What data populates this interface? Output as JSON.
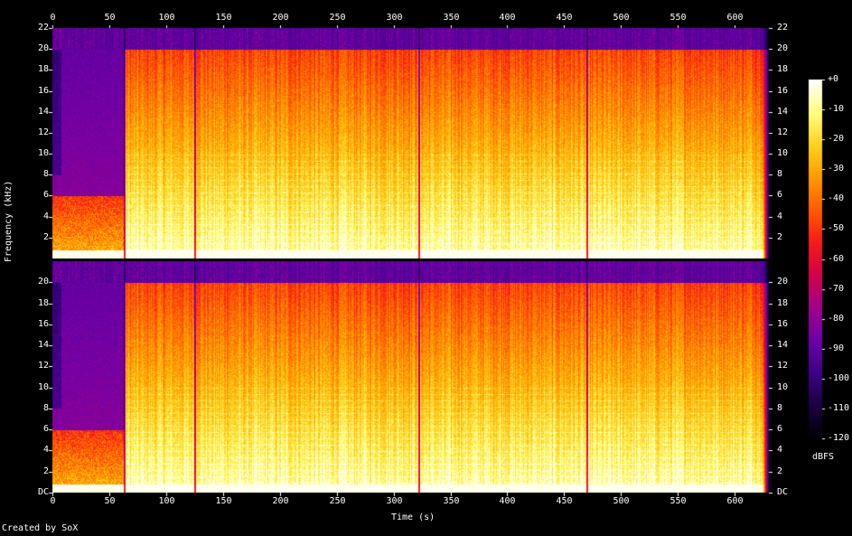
{
  "chart_data": {
    "type": "heatmap",
    "subtype": "spectrogram",
    "xlabel": "Time (s)",
    "ylabel": "Frequency (kHz)",
    "x_ticks": [
      "0",
      "50",
      "100",
      "150",
      "200",
      "250",
      "300",
      "350",
      "400",
      "450",
      "500",
      "550",
      "600"
    ],
    "y_ticks_top": [
      "2",
      "4",
      "6",
      "8",
      "10",
      "12",
      "14",
      "16",
      "18",
      "20",
      "22"
    ],
    "y_ticks_bottom": [
      "DC",
      "2",
      "4",
      "6",
      "8",
      "10",
      "12",
      "14",
      "16",
      "18",
      "20"
    ],
    "xlim": [
      0,
      630
    ],
    "ylim_khz": [
      0,
      22
    ],
    "channels": 2,
    "colorbar": {
      "label": "dBFS",
      "ticks": [
        "+0",
        "-10",
        "-20",
        "-30",
        "-40",
        "-50",
        "-60",
        "-70",
        "-80",
        "-90",
        "-100",
        "-110",
        "-120"
      ],
      "range": [
        -120,
        0
      ],
      "colormap": [
        "#000000",
        "#1a0040",
        "#3c0084",
        "#6a00a8",
        "#a0008c",
        "#d2004a",
        "#f51a1a",
        "#ff5a00",
        "#ff9a00",
        "#ffd21e",
        "#ffff80",
        "#ffffff"
      ]
    },
    "song_features": {
      "song_boundaries_s": [
        0,
        63,
        125,
        322,
        470,
        630
      ],
      "intro_cutoff_khz": 6,
      "intro_cutoff_change_s": 63,
      "lowpass_khz": 20,
      "description_levels": "energy strongest below 6 kHz, decaying toward 20 kHz"
    }
  },
  "credit": "Created by SoX"
}
